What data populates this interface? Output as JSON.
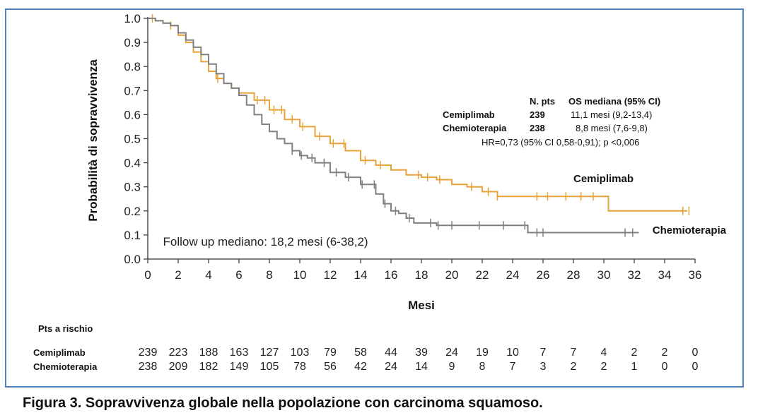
{
  "chart_data": {
    "type": "line",
    "title": "",
    "xlabel": "Mesi",
    "ylabel": "Probabilità di sopravvivenza",
    "xlim": [
      0,
      36
    ],
    "ylim": [
      0,
      1
    ],
    "x_ticks": [
      "0",
      "2",
      "4",
      "6",
      "8",
      "10",
      "12",
      "14",
      "16",
      "18",
      "20",
      "22",
      "24",
      "26",
      "28",
      "30",
      "32",
      "34",
      "36"
    ],
    "y_ticks": [
      "0.0",
      "0.1",
      "0.2",
      "0.3",
      "0.4",
      "0.5",
      "0.6",
      "0.7",
      "0.8",
      "0.9",
      "1.0"
    ],
    "grid": false,
    "series": [
      {
        "name": "Cemiplimab",
        "color": "#e8a23a",
        "points": [
          [
            0,
            1.0
          ],
          [
            0.5,
            0.99
          ],
          [
            1.0,
            0.98
          ],
          [
            1.5,
            0.97
          ],
          [
            2,
            0.93
          ],
          [
            2.5,
            0.9
          ],
          [
            3,
            0.86
          ],
          [
            3.5,
            0.82
          ],
          [
            4,
            0.78
          ],
          [
            4.5,
            0.75
          ],
          [
            5,
            0.73
          ],
          [
            5.5,
            0.71
          ],
          [
            6,
            0.69
          ],
          [
            7,
            0.66
          ],
          [
            8,
            0.62
          ],
          [
            9,
            0.58
          ],
          [
            10,
            0.55
          ],
          [
            11,
            0.51
          ],
          [
            12,
            0.48
          ],
          [
            13,
            0.45
          ],
          [
            14,
            0.41
          ],
          [
            15,
            0.39
          ],
          [
            16,
            0.37
          ],
          [
            17,
            0.35
          ],
          [
            18,
            0.34
          ],
          [
            19,
            0.33
          ],
          [
            20,
            0.31
          ],
          [
            21,
            0.3
          ],
          [
            22,
            0.28
          ],
          [
            23,
            0.26
          ],
          [
            24,
            0.26
          ],
          [
            26,
            0.26
          ],
          [
            28,
            0.26
          ],
          [
            30.3,
            0.26
          ],
          [
            30.3,
            0.2
          ],
          [
            33,
            0.2
          ],
          [
            35.5,
            0.2
          ]
        ],
        "censor_x": [
          0.3,
          1.5,
          4.6,
          7.2,
          7.7,
          8.3,
          8.8,
          9.5,
          10.2,
          11.3,
          12.2,
          12.9,
          14.3,
          15.3,
          17.8,
          18.4,
          19.2,
          21.3,
          22.4,
          23.0,
          25.6,
          26.3,
          27.5,
          28.5,
          29.3,
          35.2,
          35.6
        ]
      },
      {
        "name": "Chemioterapia",
        "color": "#808080",
        "points": [
          [
            0,
            1.0
          ],
          [
            0.5,
            0.99
          ],
          [
            1.0,
            0.98
          ],
          [
            1.5,
            0.97
          ],
          [
            2,
            0.94
          ],
          [
            2.5,
            0.91
          ],
          [
            3,
            0.88
          ],
          [
            3.5,
            0.85
          ],
          [
            4,
            0.81
          ],
          [
            4.5,
            0.77
          ],
          [
            5,
            0.73
          ],
          [
            5.5,
            0.71
          ],
          [
            6,
            0.68
          ],
          [
            6.5,
            0.64
          ],
          [
            7,
            0.6
          ],
          [
            7.5,
            0.56
          ],
          [
            8,
            0.53
          ],
          [
            8.5,
            0.5
          ],
          [
            9,
            0.48
          ],
          [
            9.5,
            0.45
          ],
          [
            10,
            0.43
          ],
          [
            10.5,
            0.42
          ],
          [
            11,
            0.4
          ],
          [
            12,
            0.36
          ],
          [
            13,
            0.34
          ],
          [
            14,
            0.31
          ],
          [
            15,
            0.27
          ],
          [
            15.5,
            0.23
          ],
          [
            16,
            0.2
          ],
          [
            16.5,
            0.19
          ],
          [
            17,
            0.17
          ],
          [
            17.5,
            0.15
          ],
          [
            18,
            0.15
          ],
          [
            19,
            0.14
          ],
          [
            20,
            0.14
          ],
          [
            22,
            0.14
          ],
          [
            24,
            0.14
          ],
          [
            25,
            0.14
          ],
          [
            25,
            0.11
          ],
          [
            28,
            0.11
          ],
          [
            30,
            0.11
          ],
          [
            32.3,
            0.11
          ]
        ],
        "censor_x": [
          9.5,
          10.1,
          10.8,
          11.6,
          12.4,
          13.2,
          14.1,
          14.9,
          15.6,
          16.3,
          17.2,
          18.6,
          19.1,
          20.0,
          21.8,
          23.4,
          24.8,
          25.6,
          26.0,
          31.4,
          31.9
        ]
      }
    ],
    "annotations": [
      {
        "text": "Cemiplimab",
        "x": 28.0,
        "y": 0.32
      },
      {
        "text": "Chemioterapia",
        "x": 33.2,
        "y": 0.105
      },
      {
        "text": "Follow up mediano: 18,2 mesi (6-38,2)",
        "x": 1.0,
        "y": 0.055
      }
    ]
  },
  "legend_table": {
    "col_npts": "N. pts",
    "col_os": "OS mediana (95% CI)",
    "rows": [
      {
        "label": "Cemiplimab",
        "npts": "239",
        "os": "11,1 mesi (9,2-13,4)"
      },
      {
        "label": "Chemioterapia",
        "npts": "238",
        "os": "8,8 mesi (7,6-9,8)"
      }
    ],
    "hr_text": "HR=0,73 (95% CI 0,58-0,91); p <0,006"
  },
  "risk_table": {
    "heading": "Pts a rischio",
    "rows": [
      {
        "label": "Cemiplimab",
        "values": [
          "239",
          "223",
          "188",
          "163",
          "127",
          "103",
          "79",
          "58",
          "44",
          "39",
          "24",
          "19",
          "10",
          "7",
          "7",
          "4",
          "2",
          "2",
          "0"
        ]
      },
      {
        "label": "Chemioterapia",
        "values": [
          "238",
          "209",
          "182",
          "149",
          "105",
          "78",
          "56",
          "42",
          "24",
          "14",
          "9",
          "8",
          "7",
          "3",
          "2",
          "2",
          "1",
          "0",
          "0"
        ]
      }
    ]
  },
  "caption": "Figura 3. Sopravvivenza globale nella popolazione con carcinoma squamoso."
}
